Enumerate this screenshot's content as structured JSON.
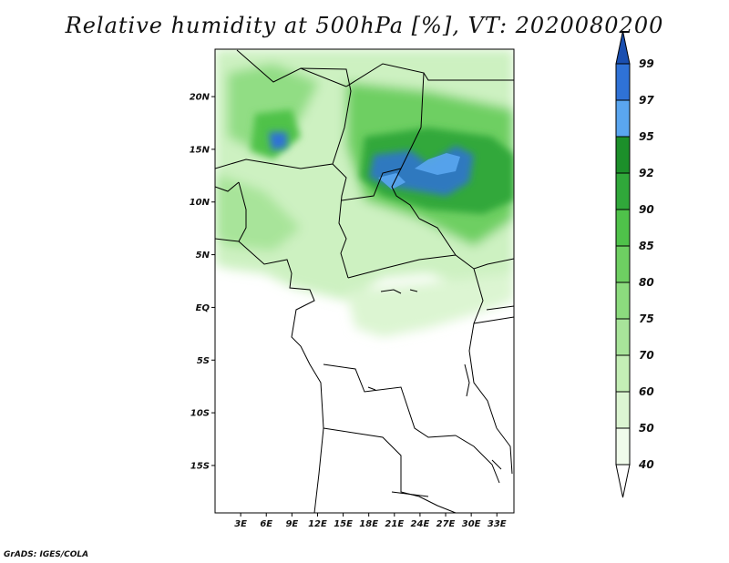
{
  "title": "Relative humidity at 500hPa [%], VT: 2020080200",
  "credit": "GrADS: IGES/COLA",
  "map": {
    "projection": "latlon",
    "lon_range": [
      0,
      35
    ],
    "lat_range": [
      -19.5,
      24.5
    ],
    "lat_ticks": [
      {
        "value": 20,
        "label": "20N"
      },
      {
        "value": 15,
        "label": "15N"
      },
      {
        "value": 10,
        "label": "10N"
      },
      {
        "value": 5,
        "label": "5N"
      },
      {
        "value": 0,
        "label": "EQ"
      },
      {
        "value": -5,
        "label": "5S"
      },
      {
        "value": -10,
        "label": "10S"
      },
      {
        "value": -15,
        "label": "15S"
      }
    ],
    "lon_ticks": [
      {
        "value": 3,
        "label": "3E"
      },
      {
        "value": 6,
        "label": "6E"
      },
      {
        "value": 9,
        "label": "9E"
      },
      {
        "value": 12,
        "label": "12E"
      },
      {
        "value": 15,
        "label": "15E"
      },
      {
        "value": 18,
        "label": "18E"
      },
      {
        "value": 21,
        "label": "21E"
      },
      {
        "value": 24,
        "label": "24E"
      },
      {
        "value": 27,
        "label": "27E"
      },
      {
        "value": 30,
        "label": "30E"
      },
      {
        "value": 33,
        "label": "33E"
      }
    ]
  },
  "colorbar": {
    "levels": [
      {
        "label": "40",
        "color": "#f0fbeb"
      },
      {
        "label": "50",
        "color": "#dcf5d2"
      },
      {
        "label": "60",
        "color": "#c4eeb6"
      },
      {
        "label": "70",
        "color": "#a8e49a"
      },
      {
        "label": "75",
        "color": "#8cdb7e"
      },
      {
        "label": "80",
        "color": "#6ecf62"
      },
      {
        "label": "85",
        "color": "#4fc24a"
      },
      {
        "label": "90",
        "color": "#30a83a"
      },
      {
        "label": "92",
        "color": "#1c8f2a"
      },
      {
        "label": "95",
        "color": "#5aa6f0"
      },
      {
        "label": "97",
        "color": "#2f72d6"
      },
      {
        "label": "99",
        "color": ""
      }
    ],
    "below_color": "#ffffff",
    "above_color": "#1a4fb0"
  }
}
